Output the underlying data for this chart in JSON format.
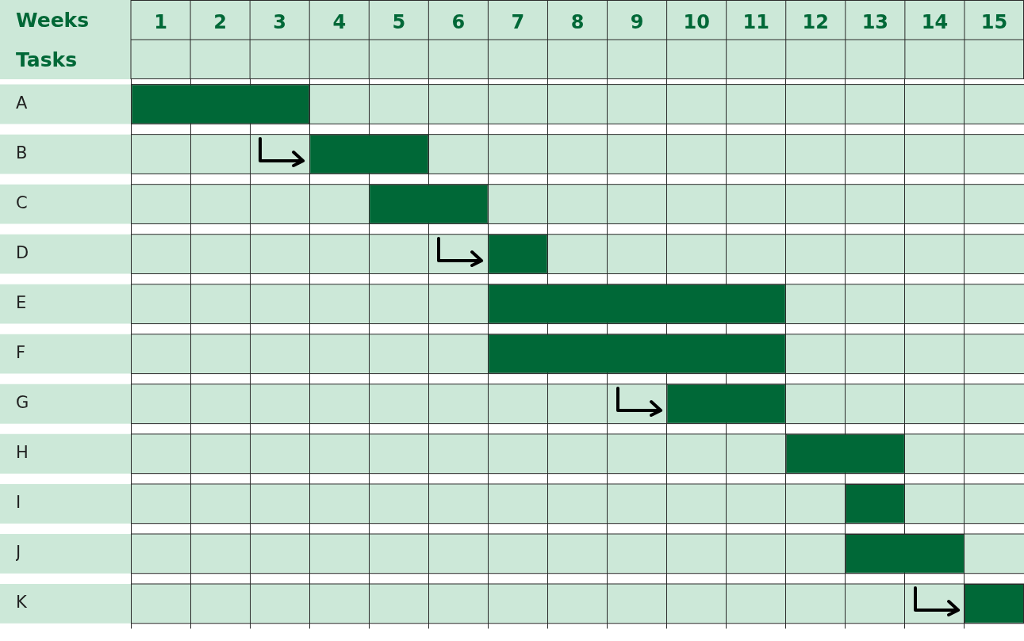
{
  "chart_data": {
    "type": "bar",
    "orientation": "horizontal",
    "xlabel": "Weeks",
    "ylabel": "Tasks",
    "categories": [
      "A",
      "B",
      "C",
      "D",
      "E",
      "F",
      "G",
      "H",
      "I",
      "J",
      "K"
    ],
    "base": [
      0,
      3,
      4,
      6,
      6,
      6,
      9,
      11,
      12,
      12,
      14
    ],
    "values": [
      3,
      2,
      2,
      1,
      5,
      5,
      2,
      2,
      1,
      2,
      1
    ],
    "color": "#006837",
    "xlim": [
      0,
      15
    ],
    "xticks": [
      {
        "value": 0,
        "label": null
      },
      {
        "value": 0.5,
        "label": "1"
      },
      {
        "value": 1,
        "label": null
      },
      {
        "value": 1.5,
        "label": "2"
      },
      {
        "value": 2,
        "label": null
      },
      {
        "value": 2.5,
        "label": "3"
      },
      {
        "value": 3,
        "label": null
      },
      {
        "value": 3.5,
        "label": "4"
      },
      {
        "value": 4,
        "label": null
      },
      {
        "value": 4.5,
        "label": "5"
      },
      {
        "value": 5,
        "label": null
      },
      {
        "value": 5.5,
        "label": "6"
      },
      {
        "value": 6,
        "label": null
      },
      {
        "value": 6.5,
        "label": "7"
      },
      {
        "value": 7,
        "label": null
      },
      {
        "value": 7.5,
        "label": "8"
      },
      {
        "value": 8,
        "label": null
      },
      {
        "value": 8.5,
        "label": "9"
      },
      {
        "value": 9,
        "label": null
      },
      {
        "value": 9.5,
        "label": "10"
      },
      {
        "value": 10,
        "label": null
      },
      {
        "value": 10.5,
        "label": "11"
      },
      {
        "value": 11,
        "label": null
      },
      {
        "value": 11.5,
        "label": "12"
      },
      {
        "value": 12,
        "label": null
      },
      {
        "value": 12.5,
        "label": "13"
      },
      {
        "value": 13,
        "label": null
      },
      {
        "value": 13.5,
        "label": "14"
      },
      {
        "value": 14,
        "label": null
      },
      {
        "value": 14.5,
        "label": "15"
      },
      {
        "value": 15,
        "label": null
      }
    ],
    "grid": true
  }
}
